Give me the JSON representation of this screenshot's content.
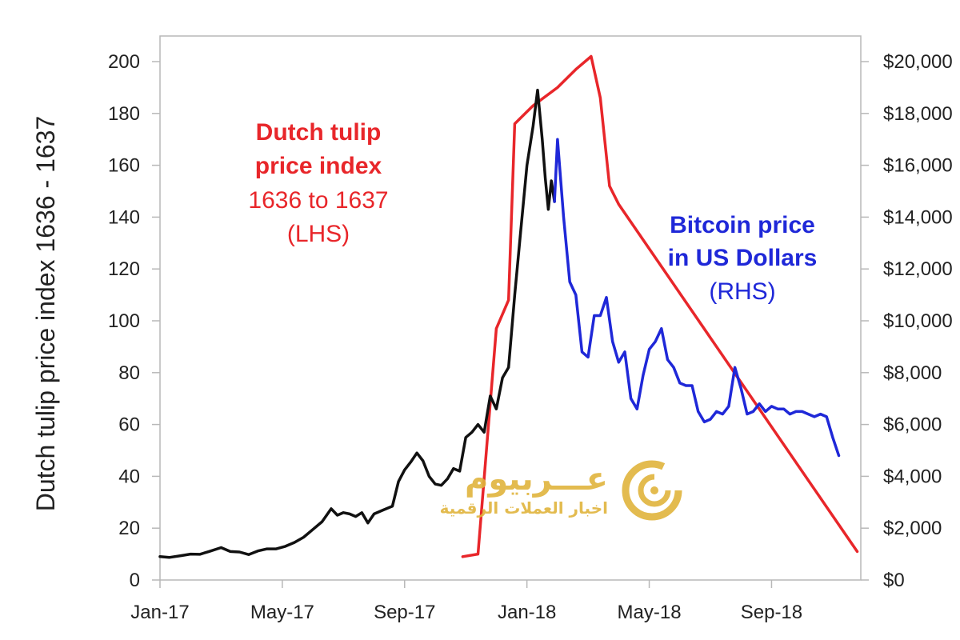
{
  "chart_data": {
    "type": "line",
    "ylabel": "Dutch tulip price index 1636 - 1637",
    "x_tick_labels": [
      "Jan-17",
      "May-17",
      "Sep-17",
      "Jan-18",
      "May-18",
      "Sep-18"
    ],
    "y_left": {
      "range": [
        0,
        200
      ],
      "ticks": [
        "0",
        "20",
        "40",
        "60",
        "80",
        "100",
        "120",
        "140",
        "160",
        "180",
        "200"
      ]
    },
    "y_right": {
      "range": [
        0,
        20000
      ],
      "ticks": [
        "$0",
        "$2,000",
        "$4,000",
        "$6,000",
        "$8,000",
        "$10,000",
        "$12,000",
        "$14,000",
        "$16,000",
        "$18,000",
        "$20,000"
      ]
    },
    "x_unit": "months since Jan-17",
    "series": [
      {
        "name": "Dutch tulip price index 1636 to 1637 (LHS)",
        "color": "#e8262a",
        "axis": "left",
        "points": [
          [
            9.9,
            9
          ],
          [
            10.4,
            10
          ],
          [
            11.0,
            97
          ],
          [
            11.4,
            108
          ],
          [
            11.6,
            176
          ],
          [
            12.2,
            183
          ],
          [
            13.0,
            190
          ],
          [
            13.6,
            197
          ],
          [
            14.1,
            202
          ],
          [
            14.4,
            186
          ],
          [
            14.7,
            152
          ],
          [
            15.0,
            145
          ],
          [
            22.8,
            11
          ]
        ]
      },
      {
        "name": "Bitcoin price in US Dollars (RHS) — 2017",
        "color": "#111111",
        "axis": "right",
        "points": [
          [
            0,
            900
          ],
          [
            0.3,
            870
          ],
          [
            0.7,
            940
          ],
          [
            1.0,
            1000
          ],
          [
            1.3,
            990
          ],
          [
            1.6,
            1100
          ],
          [
            2.0,
            1250
          ],
          [
            2.3,
            1100
          ],
          [
            2.6,
            1080
          ],
          [
            2.9,
            980
          ],
          [
            3.2,
            1120
          ],
          [
            3.5,
            1200
          ],
          [
            3.8,
            1200
          ],
          [
            4.1,
            1300
          ],
          [
            4.4,
            1450
          ],
          [
            4.7,
            1650
          ],
          [
            5.0,
            1950
          ],
          [
            5.3,
            2250
          ],
          [
            5.6,
            2750
          ],
          [
            5.8,
            2500
          ],
          [
            6.0,
            2600
          ],
          [
            6.2,
            2550
          ],
          [
            6.4,
            2450
          ],
          [
            6.6,
            2600
          ],
          [
            6.8,
            2200
          ],
          [
            7.0,
            2550
          ],
          [
            7.3,
            2700
          ],
          [
            7.6,
            2850
          ],
          [
            7.8,
            3800
          ],
          [
            8.0,
            4250
          ],
          [
            8.2,
            4550
          ],
          [
            8.4,
            4900
          ],
          [
            8.6,
            4600
          ],
          [
            8.8,
            4000
          ],
          [
            9.0,
            3700
          ],
          [
            9.2,
            3650
          ],
          [
            9.4,
            3900
          ],
          [
            9.6,
            4300
          ],
          [
            9.8,
            4200
          ],
          [
            10.0,
            5500
          ],
          [
            10.2,
            5700
          ],
          [
            10.4,
            6000
          ],
          [
            10.6,
            5700
          ],
          [
            10.8,
            7100
          ],
          [
            11.0,
            6600
          ],
          [
            11.2,
            7800
          ],
          [
            11.4,
            8200
          ],
          [
            11.6,
            11000
          ],
          [
            11.8,
            13500
          ],
          [
            12.0,
            16000
          ],
          [
            12.2,
            17500
          ],
          [
            12.35,
            18900
          ],
          [
            12.5,
            17000
          ],
          [
            12.6,
            15500
          ],
          [
            12.7,
            14300
          ],
          [
            12.8,
            15400
          ],
          [
            12.9,
            14600
          ]
        ]
      },
      {
        "name": "Bitcoin price in US Dollars (RHS) — 2018",
        "color": "#1f28d8",
        "axis": "right",
        "points": [
          [
            12.9,
            14600
          ],
          [
            13.0,
            17000
          ],
          [
            13.2,
            14000
          ],
          [
            13.4,
            11500
          ],
          [
            13.6,
            11000
          ],
          [
            13.8,
            8800
          ],
          [
            14.0,
            8600
          ],
          [
            14.2,
            10200
          ],
          [
            14.4,
            10200
          ],
          [
            14.6,
            10900
          ],
          [
            14.8,
            9200
          ],
          [
            15.0,
            8400
          ],
          [
            15.2,
            8800
          ],
          [
            15.4,
            7000
          ],
          [
            15.6,
            6600
          ],
          [
            15.8,
            7900
          ],
          [
            16.0,
            8900
          ],
          [
            16.2,
            9200
          ],
          [
            16.4,
            9700
          ],
          [
            16.6,
            8500
          ],
          [
            16.8,
            8200
          ],
          [
            17.0,
            7600
          ],
          [
            17.2,
            7500
          ],
          [
            17.4,
            7500
          ],
          [
            17.6,
            6500
          ],
          [
            17.8,
            6100
          ],
          [
            18.0,
            6200
          ],
          [
            18.2,
            6500
          ],
          [
            18.4,
            6400
          ],
          [
            18.6,
            6700
          ],
          [
            18.8,
            8200
          ],
          [
            19.0,
            7400
          ],
          [
            19.2,
            6400
          ],
          [
            19.4,
            6500
          ],
          [
            19.6,
            6800
          ],
          [
            19.8,
            6500
          ],
          [
            20.0,
            6700
          ],
          [
            20.2,
            6600
          ],
          [
            20.4,
            6600
          ],
          [
            20.6,
            6400
          ],
          [
            20.8,
            6500
          ],
          [
            21.0,
            6500
          ],
          [
            21.2,
            6400
          ],
          [
            21.4,
            6300
          ],
          [
            21.6,
            6400
          ],
          [
            21.8,
            6300
          ],
          [
            22.0,
            5500
          ],
          [
            22.2,
            4800
          ]
        ]
      }
    ],
    "annotations": {
      "tulip": {
        "line1": "Dutch tulip",
        "line2": "price index",
        "line3": "1636 to 1637",
        "line4": "(LHS)",
        "color": "#e8262a"
      },
      "bitcoin": {
        "line1": "Bitcoin price",
        "line2": "in US Dollars",
        "line3": "(RHS)",
        "color": "#1f28d8"
      }
    }
  },
  "watermark": {
    "title": "عـــربيوم",
    "subtitle": "اخبار العملات الرقمية",
    "color": "#e0b43c"
  }
}
